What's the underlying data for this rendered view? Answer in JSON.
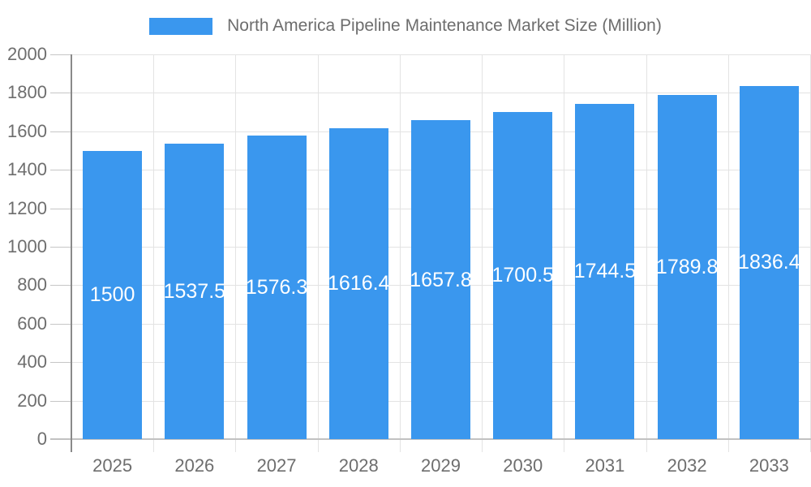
{
  "chart_data": {
    "type": "bar",
    "title": "North America Pipeline Maintenance Market Size (Million)",
    "categories": [
      "2025",
      "2026",
      "2027",
      "2028",
      "2029",
      "2030",
      "2031",
      "2032",
      "2033"
    ],
    "series": [
      {
        "name": "North America Pipeline Maintenance Market Size (Million)",
        "values": [
          1500,
          1537.5,
          1576.3,
          1616.4,
          1657.8,
          1700.5,
          1744.5,
          1789.8,
          1836.4
        ]
      }
    ],
    "value_labels": [
      "1500",
      "1537.5",
      "1576.3",
      "1616.4",
      "1657.8",
      "1700.5",
      "1744.5",
      "1789.8",
      "1836.4"
    ],
    "xlabel": "",
    "ylabel": "",
    "ylim": [
      0,
      2000
    ],
    "yticks": [
      0,
      200,
      400,
      600,
      800,
      1000,
      1200,
      1400,
      1600,
      1800,
      2000
    ],
    "grid": true,
    "legend_position": "top",
    "colors": {
      "bar": "#3A97EE",
      "axis_text": "#6e6e6e",
      "legend_text": "#6d6d6d",
      "grid": "#e3e3e3",
      "y_axis_line": "#8a8a8a",
      "x_axis_line": "#c2c2c2",
      "tick": "#c6c6c6",
      "value_label_text": "#ffffff",
      "background": "#ffffff"
    }
  }
}
